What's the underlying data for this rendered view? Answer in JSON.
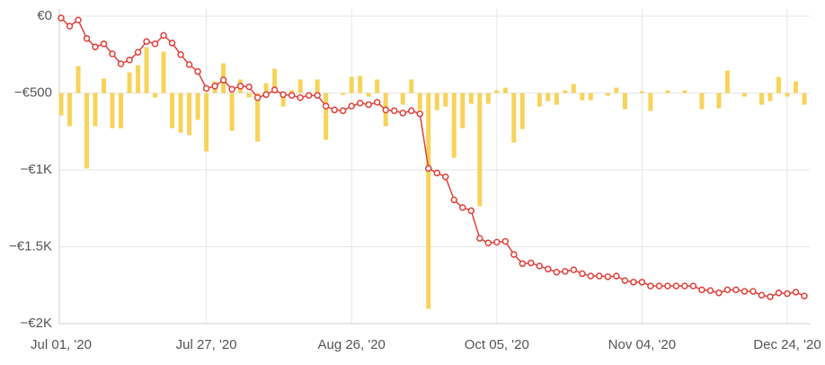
{
  "chart_data": {
    "type": "combo",
    "categories": [
      "Jul 01, '20",
      null,
      null,
      null,
      null,
      null,
      null,
      null,
      null,
      null,
      null,
      null,
      null,
      null,
      null,
      null,
      null,
      "Jul 27, '20",
      null,
      null,
      null,
      null,
      null,
      null,
      null,
      null,
      null,
      null,
      null,
      null,
      null,
      null,
      null,
      null,
      "Aug 26, '20",
      null,
      null,
      null,
      null,
      null,
      null,
      null,
      null,
      null,
      null,
      null,
      null,
      null,
      null,
      null,
      null,
      "Oct 05, '20",
      null,
      null,
      null,
      null,
      null,
      null,
      null,
      null,
      null,
      null,
      null,
      null,
      null,
      null,
      null,
      null,
      "Nov 04, '20",
      null,
      null,
      null,
      null,
      null,
      null,
      null,
      null,
      null,
      null,
      null,
      null,
      null,
      null,
      null,
      null,
      "Dec 24, '20",
      null,
      null
    ],
    "series": [
      {
        "type": "bar",
        "axis": "y2",
        "color": "#f7d35a",
        "values": [
          -146,
          -216,
          175,
          -491,
          -216,
          94,
          -228,
          -228,
          135,
          181,
          298,
          -29,
          269,
          -228,
          -257,
          -275,
          -175,
          -380,
          76,
          193,
          -246,
          88,
          -29,
          -316,
          64,
          158,
          -88,
          18,
          88,
          0,
          88,
          -304,
          0,
          -12,
          105,
          111,
          -23,
          88,
          -216,
          0,
          -76,
          88,
          -111,
          -1404,
          -111,
          -88,
          -421,
          -228,
          -70,
          -737,
          -70,
          18,
          35,
          -322,
          -234,
          0,
          -88,
          -53,
          -76,
          18,
          58,
          -47,
          -47,
          0,
          -18,
          35,
          -105,
          0,
          12,
          -117,
          0,
          18,
          0,
          18,
          0,
          -105,
          0,
          -99,
          146,
          0,
          -23,
          0,
          -76,
          -53,
          105,
          -23,
          76,
          -76
        ]
      },
      {
        "type": "line",
        "color": "#e0403a",
        "values": [
          -12,
          -65,
          -25,
          -145,
          -200,
          -180,
          -245,
          -310,
          -285,
          -235,
          -165,
          -180,
          -125,
          -175,
          -250,
          -315,
          -360,
          -470,
          -455,
          -415,
          -475,
          -455,
          -460,
          -530,
          -510,
          -480,
          -510,
          -515,
          -530,
          -515,
          -515,
          -585,
          -610,
          -615,
          -585,
          -565,
          -575,
          -560,
          -610,
          -615,
          -630,
          -615,
          -635,
          -990,
          -1020,
          -1045,
          -1195,
          -1245,
          -1265,
          -1445,
          -1475,
          -1470,
          -1465,
          -1550,
          -1610,
          -1605,
          -1625,
          -1645,
          -1665,
          -1660,
          -1650,
          -1675,
          -1690,
          -1690,
          -1695,
          -1690,
          -1720,
          -1730,
          -1730,
          -1755,
          -1755,
          -1755,
          -1755,
          -1755,
          -1755,
          -1780,
          -1785,
          -1800,
          -1780,
          -1780,
          -1790,
          -1790,
          -1815,
          -1825,
          -1800,
          -1805,
          -1795,
          -1820
        ]
      }
    ],
    "ylim": [
      -2000,
      0
    ],
    "yticks": [
      {
        "value": 0,
        "label": "€0"
      },
      {
        "value": -500,
        "label": "−€500"
      },
      {
        "value": -1000,
        "label": "−€1K"
      },
      {
        "value": -1500,
        "label": "−€1.5K"
      },
      {
        "value": -2000,
        "label": "−€2K"
      }
    ],
    "y2lim": [
      -1500,
      500
    ],
    "grid": true
  }
}
